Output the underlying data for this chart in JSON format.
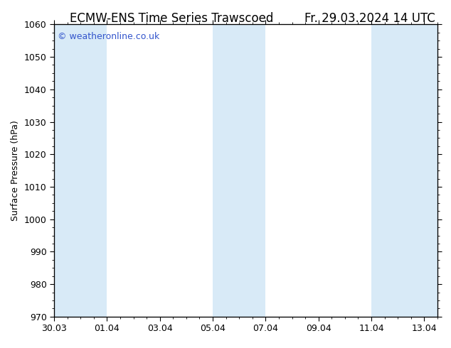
{
  "title_center": "ECMW-ENS Time Series Trawscoed",
  "title_right": "Fr. 29.03.2024 14 UTC",
  "ylabel": "Surface Pressure (hPa)",
  "ylim": [
    970,
    1060
  ],
  "yticks": [
    970,
    980,
    990,
    1000,
    1010,
    1020,
    1030,
    1040,
    1050,
    1060
  ],
  "xtick_labels": [
    "30.03",
    "01.04",
    "03.04",
    "05.04",
    "07.04",
    "09.04",
    "11.04",
    "13.04"
  ],
  "xtick_positions": [
    0,
    2,
    4,
    6,
    8,
    10,
    12,
    14
  ],
  "xlim": [
    0,
    14.5
  ],
  "background_color": "#ffffff",
  "plot_bg_color": "#ffffff",
  "shaded_bands": [
    {
      "x_start": 0,
      "x_end": 2
    },
    {
      "x_start": 6,
      "x_end": 8
    },
    {
      "x_start": 12,
      "x_end": 14.5
    }
  ],
  "shaded_color": "#d8eaf7",
  "watermark_text": "© weatheronline.co.uk",
  "watermark_color": "#3355cc",
  "title_fontsize": 12,
  "label_fontsize": 9,
  "tick_fontsize": 9,
  "fig_width": 6.34,
  "fig_height": 4.9,
  "dpi": 100
}
